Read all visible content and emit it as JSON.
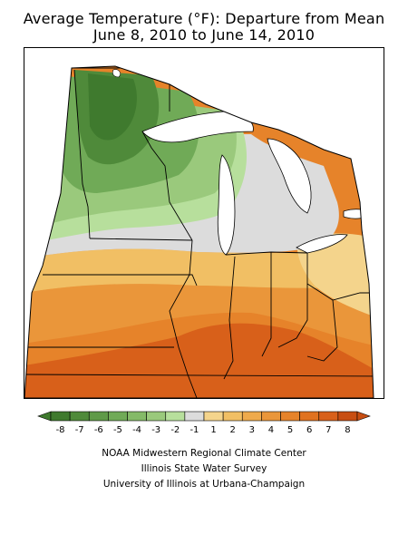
{
  "title_line1": "Average Temperature (°F): Departure from Mean",
  "title_line2": "June 8, 2010 to June 14, 2010",
  "legend": {
    "labels": [
      "-8",
      "-7",
      "-6",
      "-5",
      "-4",
      "-3",
      "-2",
      "-1",
      "1",
      "2",
      "3",
      "4",
      "5",
      "6",
      "7",
      "8"
    ],
    "colors": [
      "#3f7a2e",
      "#4f8a3a",
      "#5f9a48",
      "#70aa57",
      "#84ba68",
      "#9ac97c",
      "#b7df9c",
      "#dcdcdc",
      "#f4d48c",
      "#f1bf64",
      "#eeaa4c",
      "#ea963a",
      "#e6832a",
      "#e07220",
      "#d8601a",
      "#c84e12"
    ]
  },
  "credits": [
    "NOAA Midwestern Regional Climate Center",
    "Illinois State Water Survey",
    "University of Illinois at Urbana-Champaign"
  ],
  "colors": {
    "dark_green": "#3f7a2e",
    "mid_green": "#70aa57",
    "light_green": "#b7df9c",
    "gray": "#dcdcdc",
    "light_orange": "#f1bf64",
    "orange": "#ea963a",
    "dark_orange": "#d8601a",
    "lakes": "#ffffff",
    "outline": "#000000"
  }
}
